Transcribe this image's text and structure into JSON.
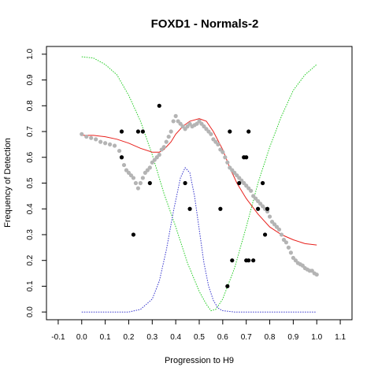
{
  "chart_data": {
    "type": "scatter",
    "title": "FOXD1 - Normals-2",
    "xlabel": "Progression to H9",
    "ylabel": "Frequency of Detection",
    "xlim": [
      -0.15,
      1.15
    ],
    "ylim": [
      -0.03,
      1.03
    ],
    "xticks": [
      "-0.1",
      "0.0",
      "0.1",
      "0.2",
      "0.3",
      "0.4",
      "0.5",
      "0.6",
      "0.7",
      "0.8",
      "0.9",
      "1.0",
      "1.1"
    ],
    "yticks": [
      "0.0",
      "0.1",
      "0.2",
      "0.3",
      "0.4",
      "0.5",
      "0.6",
      "0.7",
      "0.8",
      "0.9",
      "1.0"
    ],
    "grid": false,
    "legend": "none",
    "colors": {
      "background": "#ffffff",
      "frame": "#000000",
      "observed_points": "#000000",
      "smoothed_points": "#b4b4b4",
      "fit_curve": "#e8201c",
      "green_curve": "#22cc22",
      "blue_curve": "#3333cc"
    },
    "observed_points": [
      [
        0.17,
        0.7
      ],
      [
        0.17,
        0.6
      ],
      [
        0.22,
        0.3
      ],
      [
        0.24,
        0.7
      ],
      [
        0.26,
        0.7
      ],
      [
        0.29,
        0.5
      ],
      [
        0.33,
        0.8
      ],
      [
        0.44,
        0.5
      ],
      [
        0.46,
        0.4
      ],
      [
        0.59,
        0.4
      ],
      [
        0.62,
        0.1
      ],
      [
        0.63,
        0.7
      ],
      [
        0.64,
        0.2
      ],
      [
        0.67,
        0.5
      ],
      [
        0.69,
        0.6
      ],
      [
        0.7,
        0.6
      ],
      [
        0.7,
        0.2
      ],
      [
        0.71,
        0.7
      ],
      [
        0.71,
        0.2
      ],
      [
        0.73,
        0.2
      ],
      [
        0.75,
        0.4
      ],
      [
        0.77,
        0.5
      ],
      [
        0.78,
        0.3
      ],
      [
        0.79,
        0.4
      ]
    ],
    "smoothed_trace": [
      [
        0.0,
        0.69
      ],
      [
        0.02,
        0.68
      ],
      [
        0.04,
        0.675
      ],
      [
        0.06,
        0.67
      ],
      [
        0.08,
        0.66
      ],
      [
        0.1,
        0.655
      ],
      [
        0.12,
        0.65
      ],
      [
        0.14,
        0.645
      ],
      [
        0.16,
        0.625
      ],
      [
        0.17,
        0.6
      ],
      [
        0.18,
        0.57
      ],
      [
        0.19,
        0.55
      ],
      [
        0.2,
        0.54
      ],
      [
        0.21,
        0.53
      ],
      [
        0.22,
        0.52
      ],
      [
        0.23,
        0.5
      ],
      [
        0.24,
        0.48
      ],
      [
        0.25,
        0.5
      ],
      [
        0.26,
        0.52
      ],
      [
        0.27,
        0.54
      ],
      [
        0.28,
        0.55
      ],
      [
        0.29,
        0.56
      ],
      [
        0.3,
        0.58
      ],
      [
        0.31,
        0.59
      ],
      [
        0.32,
        0.6
      ],
      [
        0.33,
        0.61
      ],
      [
        0.34,
        0.63
      ],
      [
        0.35,
        0.64
      ],
      [
        0.36,
        0.66
      ],
      [
        0.37,
        0.68
      ],
      [
        0.38,
        0.7
      ],
      [
        0.39,
        0.74
      ],
      [
        0.4,
        0.76
      ],
      [
        0.41,
        0.74
      ],
      [
        0.42,
        0.73
      ],
      [
        0.43,
        0.72
      ],
      [
        0.44,
        0.71
      ],
      [
        0.45,
        0.72
      ],
      [
        0.46,
        0.73
      ],
      [
        0.47,
        0.72
      ],
      [
        0.48,
        0.725
      ],
      [
        0.49,
        0.73
      ],
      [
        0.5,
        0.74
      ],
      [
        0.51,
        0.73
      ],
      [
        0.52,
        0.72
      ],
      [
        0.53,
        0.71
      ],
      [
        0.54,
        0.7
      ],
      [
        0.55,
        0.69
      ],
      [
        0.56,
        0.67
      ],
      [
        0.57,
        0.66
      ],
      [
        0.58,
        0.65
      ],
      [
        0.59,
        0.63
      ],
      [
        0.6,
        0.62
      ],
      [
        0.61,
        0.6
      ],
      [
        0.62,
        0.58
      ],
      [
        0.63,
        0.56
      ],
      [
        0.64,
        0.55
      ],
      [
        0.65,
        0.54
      ],
      [
        0.66,
        0.53
      ],
      [
        0.67,
        0.52
      ],
      [
        0.68,
        0.51
      ],
      [
        0.69,
        0.5
      ],
      [
        0.7,
        0.49
      ],
      [
        0.71,
        0.48
      ],
      [
        0.72,
        0.47
      ],
      [
        0.73,
        0.45
      ],
      [
        0.74,
        0.44
      ],
      [
        0.75,
        0.43
      ],
      [
        0.76,
        0.42
      ],
      [
        0.77,
        0.41
      ],
      [
        0.78,
        0.4
      ],
      [
        0.79,
        0.39
      ],
      [
        0.8,
        0.37
      ],
      [
        0.81,
        0.35
      ],
      [
        0.82,
        0.34
      ],
      [
        0.83,
        0.33
      ],
      [
        0.84,
        0.32
      ],
      [
        0.85,
        0.3
      ],
      [
        0.86,
        0.28
      ],
      [
        0.87,
        0.27
      ],
      [
        0.88,
        0.25
      ],
      [
        0.89,
        0.23
      ],
      [
        0.9,
        0.21
      ],
      [
        0.91,
        0.2
      ],
      [
        0.92,
        0.19
      ],
      [
        0.93,
        0.185
      ],
      [
        0.94,
        0.18
      ],
      [
        0.95,
        0.17
      ],
      [
        0.96,
        0.165
      ],
      [
        0.97,
        0.16
      ],
      [
        0.98,
        0.16
      ],
      [
        0.99,
        0.15
      ],
      [
        1.0,
        0.145
      ]
    ],
    "fit_curve": [
      [
        0.0,
        0.685
      ],
      [
        0.05,
        0.685
      ],
      [
        0.1,
        0.68
      ],
      [
        0.15,
        0.67
      ],
      [
        0.2,
        0.655
      ],
      [
        0.25,
        0.635
      ],
      [
        0.3,
        0.62
      ],
      [
        0.33,
        0.62
      ],
      [
        0.35,
        0.63
      ],
      [
        0.38,
        0.66
      ],
      [
        0.4,
        0.69
      ],
      [
        0.43,
        0.72
      ],
      [
        0.46,
        0.74
      ],
      [
        0.5,
        0.75
      ],
      [
        0.53,
        0.74
      ],
      [
        0.56,
        0.7
      ],
      [
        0.6,
        0.63
      ],
      [
        0.63,
        0.56
      ],
      [
        0.66,
        0.5
      ],
      [
        0.7,
        0.44
      ],
      [
        0.75,
        0.38
      ],
      [
        0.8,
        0.33
      ],
      [
        0.85,
        0.3
      ],
      [
        0.9,
        0.28
      ],
      [
        0.95,
        0.265
      ],
      [
        1.0,
        0.26
      ]
    ],
    "green_curve": [
      [
        0.0,
        0.99
      ],
      [
        0.05,
        0.985
      ],
      [
        0.1,
        0.96
      ],
      [
        0.15,
        0.92
      ],
      [
        0.2,
        0.84
      ],
      [
        0.25,
        0.74
      ],
      [
        0.3,
        0.61
      ],
      [
        0.35,
        0.46
      ],
      [
        0.4,
        0.33
      ],
      [
        0.45,
        0.19
      ],
      [
        0.5,
        0.08
      ],
      [
        0.53,
        0.03
      ],
      [
        0.55,
        0.005
      ],
      [
        0.57,
        0.01
      ],
      [
        0.6,
        0.05
      ],
      [
        0.65,
        0.17
      ],
      [
        0.7,
        0.33
      ],
      [
        0.75,
        0.5
      ],
      [
        0.8,
        0.64
      ],
      [
        0.85,
        0.76
      ],
      [
        0.9,
        0.86
      ],
      [
        0.95,
        0.92
      ],
      [
        1.0,
        0.96
      ]
    ],
    "blue_curve": [
      [
        0.0,
        0.0
      ],
      [
        0.2,
        0.0
      ],
      [
        0.25,
        0.01
      ],
      [
        0.3,
        0.05
      ],
      [
        0.33,
        0.12
      ],
      [
        0.36,
        0.24
      ],
      [
        0.39,
        0.39
      ],
      [
        0.42,
        0.52
      ],
      [
        0.44,
        0.56
      ],
      [
        0.46,
        0.54
      ],
      [
        0.48,
        0.45
      ],
      [
        0.5,
        0.32
      ],
      [
        0.52,
        0.19
      ],
      [
        0.54,
        0.1
      ],
      [
        0.56,
        0.045
      ],
      [
        0.58,
        0.015
      ],
      [
        0.6,
        0.005
      ],
      [
        0.65,
        0.0
      ],
      [
        1.0,
        0.0
      ]
    ]
  }
}
